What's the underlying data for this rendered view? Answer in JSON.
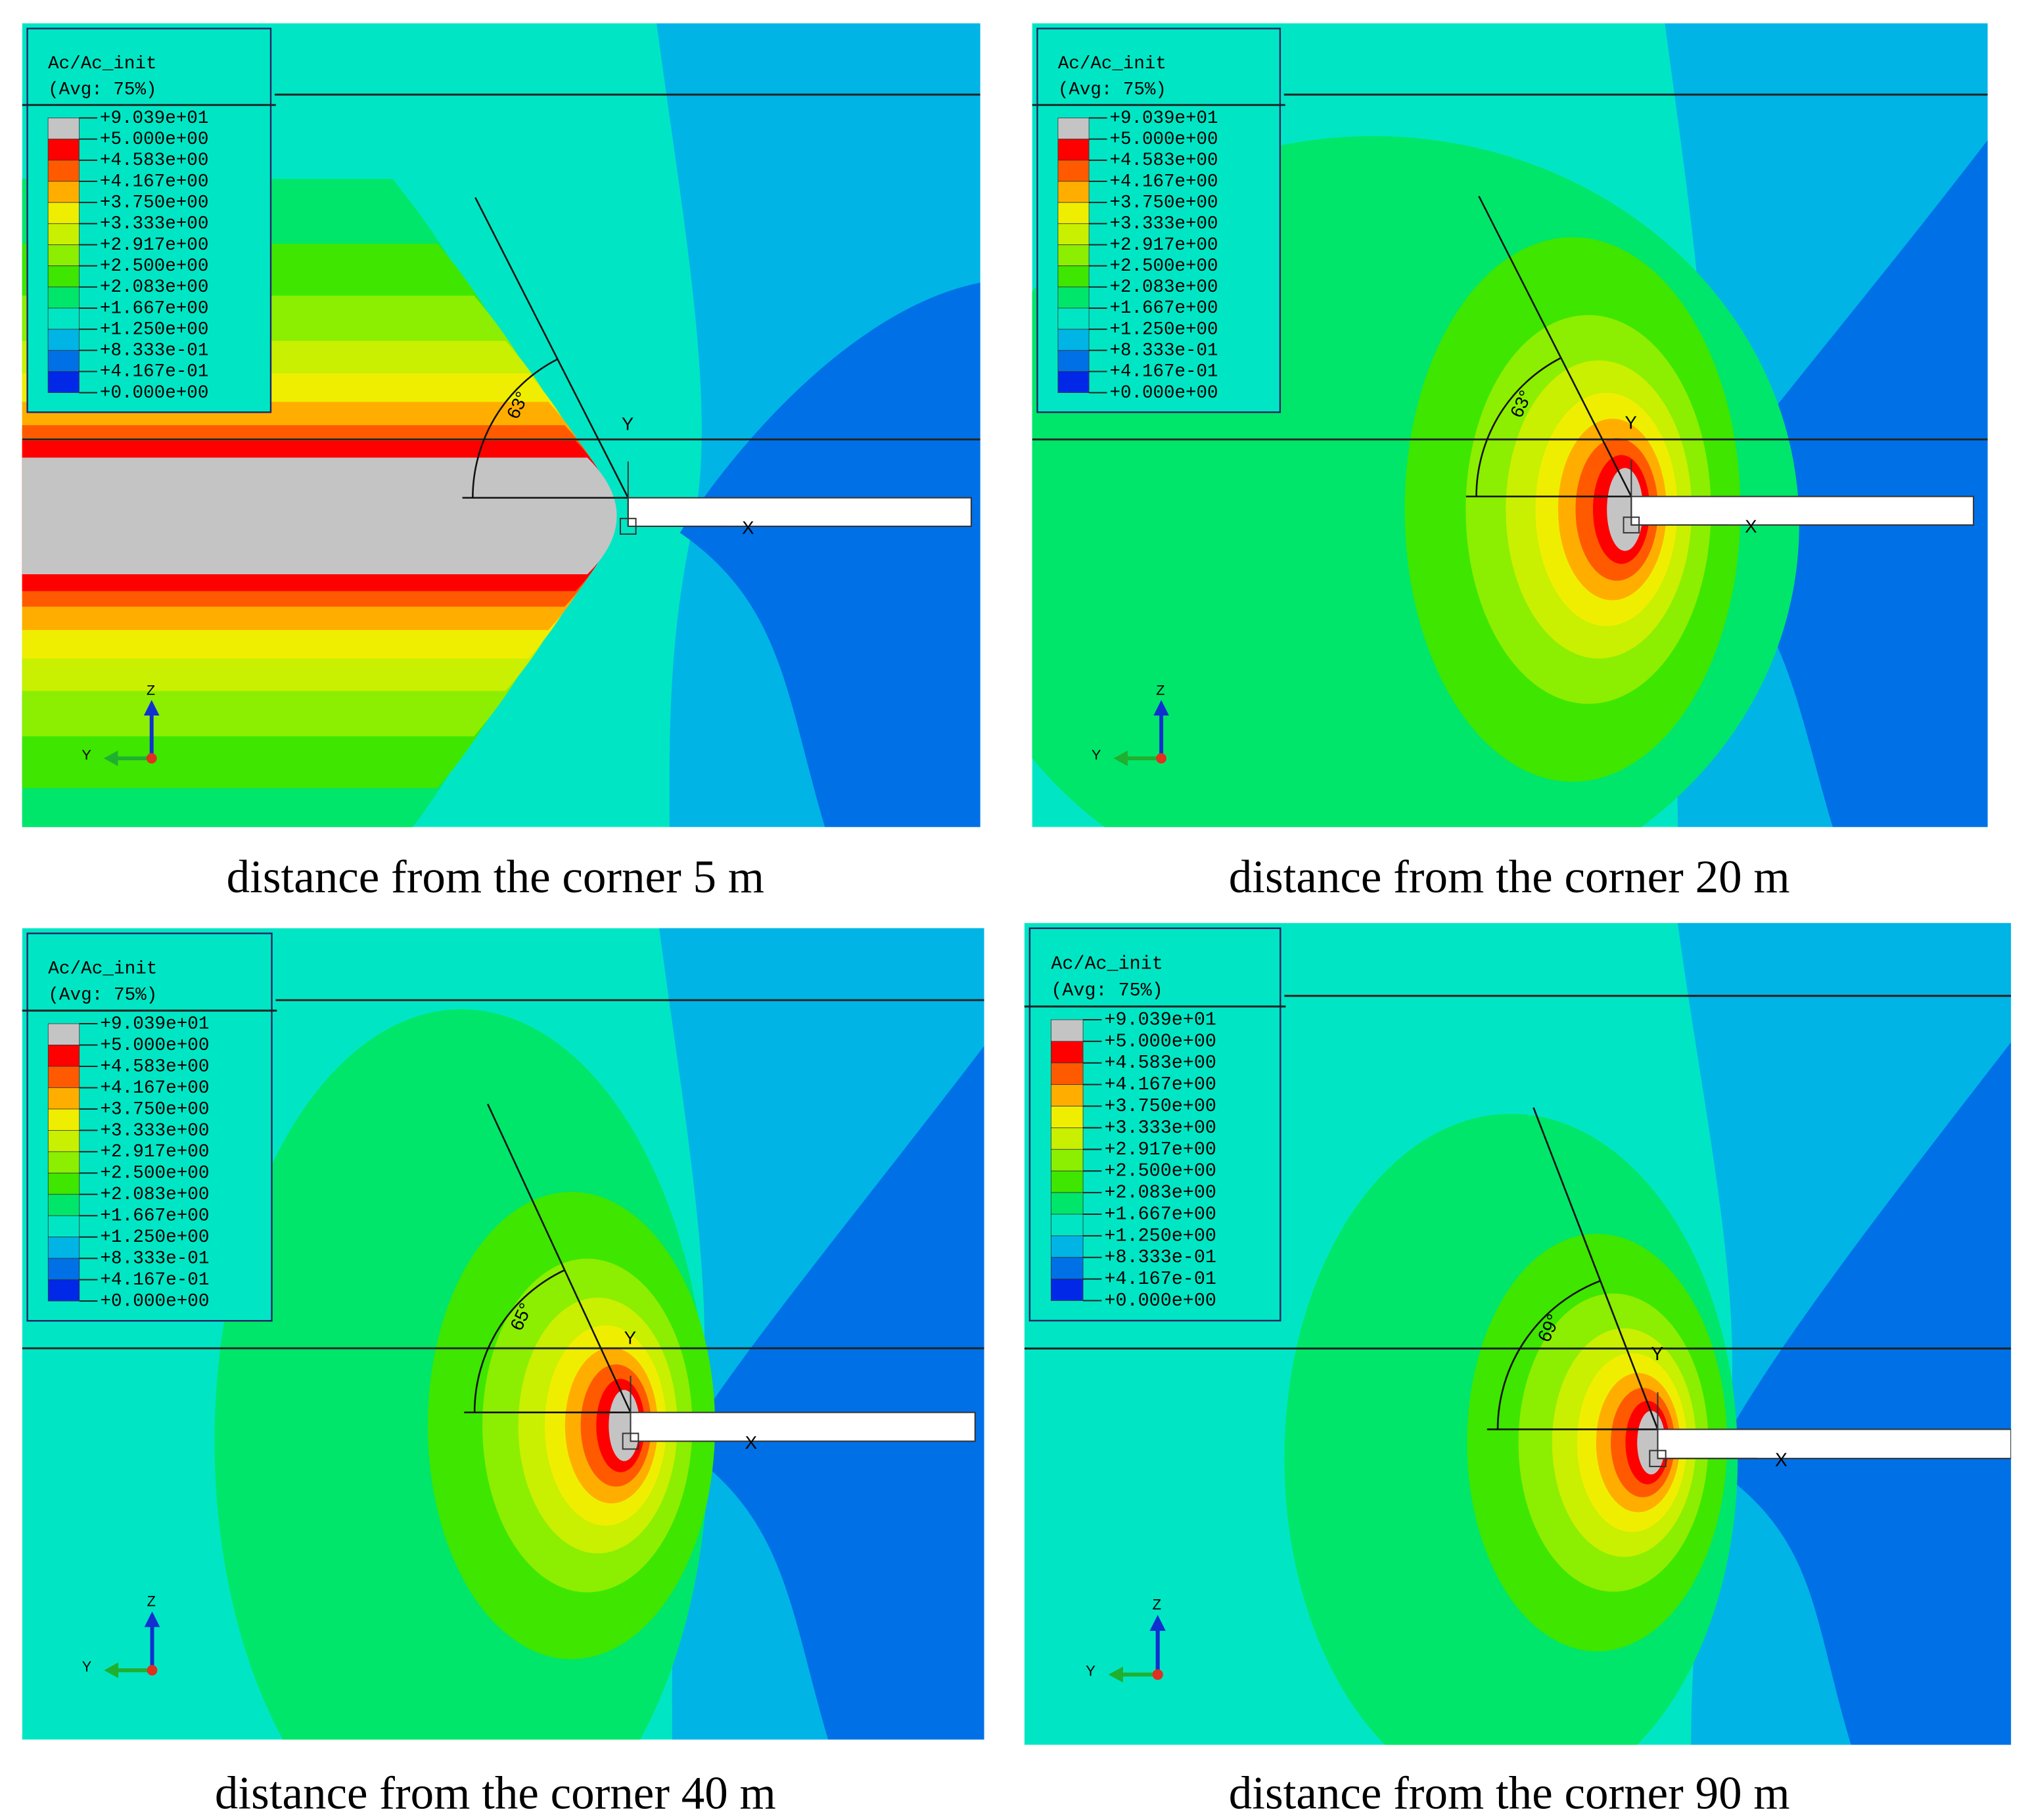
{
  "legend": {
    "title": "Ac/Ac_init",
    "subtitle": "(Avg: 75%)",
    "labels": [
      "+9.039e+01",
      "+5.000e+00",
      "+4.583e+00",
      "+4.167e+00",
      "+3.750e+00",
      "+3.333e+00",
      "+2.917e+00",
      "+2.500e+00",
      "+2.083e+00",
      "+1.667e+00",
      "+1.250e+00",
      "+8.333e-01",
      "+4.167e-01",
      "+0.000e+00"
    ],
    "colors": [
      "#c4c4c4",
      "#ff0000",
      "#ff5a00",
      "#ffae00",
      "#f0ee00",
      "#c8f000",
      "#8cee00",
      "#3ee600",
      "#00e66a",
      "#00e6c4",
      "#00b4e6",
      "#0070e6",
      "#0028e6"
    ]
  },
  "panels": [
    {
      "caption": "distance from the corner 5 m",
      "angle_label": "63°"
    },
    {
      "caption": "distance from the corner 20 m",
      "angle_label": "63°"
    },
    {
      "caption": "distance from the corner 40 m",
      "angle_label": "65°"
    },
    {
      "caption": "distance from the corner 90 m",
      "angle_label": "69°"
    }
  ],
  "triad": {
    "vertical": "Z",
    "horizontal": "Y"
  },
  "local_axes": {
    "y": "Y",
    "x": "X"
  }
}
